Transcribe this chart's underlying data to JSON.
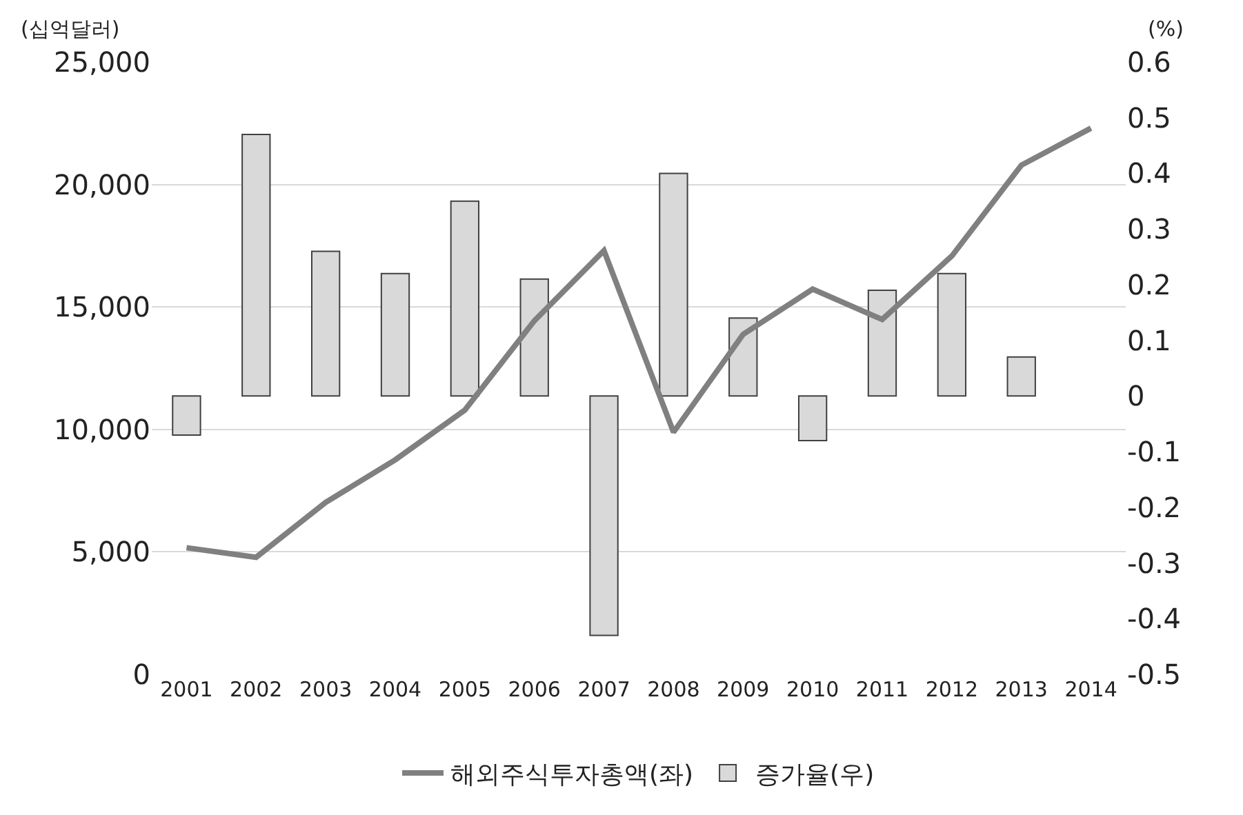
{
  "chart_data": {
    "type": "line",
    "ylabel": "(십억달러)",
    "y2label": "(%)",
    "categories": [
      "2001",
      "2002",
      "2003",
      "2004",
      "2005",
      "2006",
      "2007",
      "2008",
      "2009",
      "2010",
      "2011",
      "2012",
      "2013",
      "2014"
    ],
    "series": [
      {
        "name": "해외주식투자총액(좌)",
        "color": "#808080",
        "values": [
          5170,
          4780,
          7020,
          8760,
          10790,
          14440,
          17300,
          9890,
          13880,
          15730,
          14490,
          17080,
          20790,
          22300
        ]
      },
      {
        "name": "증가율(우)",
        "type": "bar",
        "axis": "y2",
        "color": "#d9d9d9",
        "values": [
          -0.07,
          0.47,
          0.26,
          0.22,
          0.35,
          0.21,
          -0.43,
          0.4,
          0.14,
          -0.08,
          0.19,
          0.22,
          0.07,
          null
        ]
      }
    ],
    "ylim": [
      0,
      25000
    ],
    "yticks": [
      {
        "value": 0,
        "label": "0"
      },
      {
        "value": 5000,
        "label": "5,000"
      },
      {
        "value": 10000,
        "label": "10,000"
      },
      {
        "value": 15000,
        "label": "15,000"
      },
      {
        "value": 20000,
        "label": "20,000"
      },
      {
        "value": 25000,
        "label": "25,000"
      }
    ],
    "y2lim": [
      -0.5,
      0.6
    ],
    "y2ticks": [
      -0.5,
      -0.4,
      -0.3,
      -0.2,
      -0.1,
      0,
      0.1,
      0.2,
      0.3,
      0.4,
      0.5,
      0.6
    ],
    "grid": "y",
    "legend": "bottom",
    "marker": "none",
    "line_style": "solid"
  }
}
